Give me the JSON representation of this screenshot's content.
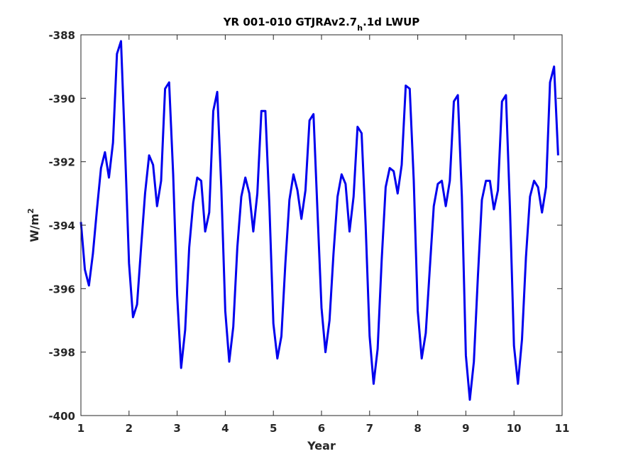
{
  "chart_data": {
    "type": "line",
    "title": {
      "main": "YR 001-010 GTJRAv2.7",
      "subscript": "h",
      "suffix": ".1d LWUP"
    },
    "xlabel": "Year",
    "ylabel": {
      "base": "W/m",
      "superscript": "2"
    },
    "xlim": [
      1,
      11
    ],
    "ylim": [
      -400,
      -388
    ],
    "xticks": [
      1,
      2,
      3,
      4,
      5,
      6,
      7,
      8,
      9,
      10,
      11
    ],
    "yticks": [
      -400,
      -398,
      -396,
      -394,
      -392,
      -390,
      -388
    ],
    "grid": false,
    "series": [
      {
        "color": "#0000ee",
        "x": [
          1.0,
          1.083,
          1.167,
          1.25,
          1.333,
          1.417,
          1.5,
          1.583,
          1.667,
          1.75,
          1.833,
          1.917,
          2.0,
          2.083,
          2.167,
          2.25,
          2.333,
          2.417,
          2.5,
          2.583,
          2.667,
          2.75,
          2.833,
          2.917,
          3.0,
          3.083,
          3.167,
          3.25,
          3.333,
          3.417,
          3.5,
          3.583,
          3.667,
          3.75,
          3.833,
          3.917,
          4.0,
          4.083,
          4.167,
          4.25,
          4.333,
          4.417,
          4.5,
          4.583,
          4.667,
          4.75,
          4.833,
          4.917,
          5.0,
          5.083,
          5.167,
          5.25,
          5.333,
          5.417,
          5.5,
          5.583,
          5.667,
          5.75,
          5.833,
          5.917,
          6.0,
          6.083,
          6.167,
          6.25,
          6.333,
          6.417,
          6.5,
          6.583,
          6.667,
          6.75,
          6.833,
          6.917,
          7.0,
          7.083,
          7.167,
          7.25,
          7.333,
          7.417,
          7.5,
          7.583,
          7.667,
          7.75,
          7.833,
          7.917,
          8.0,
          8.083,
          8.167,
          8.25,
          8.333,
          8.417,
          8.5,
          8.583,
          8.667,
          8.75,
          8.833,
          8.917,
          9.0,
          9.083,
          9.167,
          9.25,
          9.333,
          9.417,
          9.5,
          9.583,
          9.667,
          9.75,
          9.833,
          9.917,
          10.0,
          10.083,
          10.167,
          10.25,
          10.333,
          10.417,
          10.5,
          10.583,
          10.667,
          10.75,
          10.833,
          10.917
        ],
        "values": [
          -393.9,
          -395.4,
          -395.9,
          -394.9,
          -393.5,
          -392.2,
          -391.7,
          -392.5,
          -391.4,
          -388.6,
          -388.2,
          -391.6,
          -395.2,
          -396.9,
          -396.5,
          -394.7,
          -393.0,
          -391.8,
          -392.1,
          -393.4,
          -392.6,
          -389.7,
          -389.5,
          -392.4,
          -396.2,
          -398.5,
          -397.3,
          -394.7,
          -393.3,
          -392.5,
          -392.6,
          -394.2,
          -393.6,
          -390.4,
          -389.8,
          -392.8,
          -396.7,
          -398.3,
          -397.2,
          -394.7,
          -393.1,
          -392.5,
          -393.0,
          -394.2,
          -393.0,
          -390.4,
          -390.4,
          -393.4,
          -397.1,
          -398.2,
          -397.5,
          -395.2,
          -393.2,
          -392.4,
          -392.9,
          -393.8,
          -392.9,
          -390.7,
          -390.5,
          -393.6,
          -396.6,
          -398.0,
          -397.0,
          -394.9,
          -393.1,
          -392.4,
          -392.7,
          -394.2,
          -393.1,
          -390.9,
          -391.1,
          -394.0,
          -397.5,
          -399.0,
          -397.9,
          -395.1,
          -392.8,
          -392.2,
          -392.3,
          -393.0,
          -392.1,
          -389.6,
          -389.7,
          -392.6,
          -396.7,
          -398.2,
          -397.4,
          -395.4,
          -393.4,
          -392.7,
          -392.6,
          -393.4,
          -392.6,
          -390.1,
          -389.9,
          -393.1,
          -398.1,
          -399.5,
          -398.3,
          -395.6,
          -393.2,
          -392.6,
          -392.6,
          -393.5,
          -392.9,
          -390.1,
          -389.9,
          -393.5,
          -397.8,
          -399.0,
          -397.6,
          -395.0,
          -393.1,
          -392.6,
          -392.8,
          -393.6,
          -392.8,
          -389.5,
          -389.0,
          -391.8
        ]
      }
    ]
  }
}
